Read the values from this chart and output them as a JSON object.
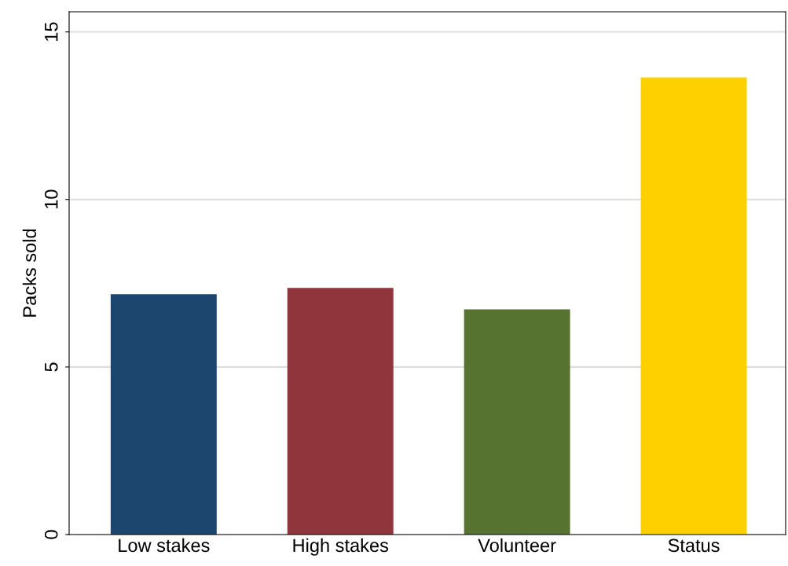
{
  "chart_data": {
    "type": "bar",
    "ylabel": "Packs sold",
    "categories": [
      "Low stakes",
      "High stakes",
      "Volunteer",
      "Status"
    ],
    "values": [
      7.17,
      7.36,
      6.72,
      13.64
    ],
    "colors": [
      "#1c466d",
      "#90353c",
      "#56742f",
      "#ffd000"
    ],
    "ylim": [
      0,
      15.6
    ],
    "yticks": [
      0,
      5,
      10,
      15
    ],
    "grid": "y"
  }
}
